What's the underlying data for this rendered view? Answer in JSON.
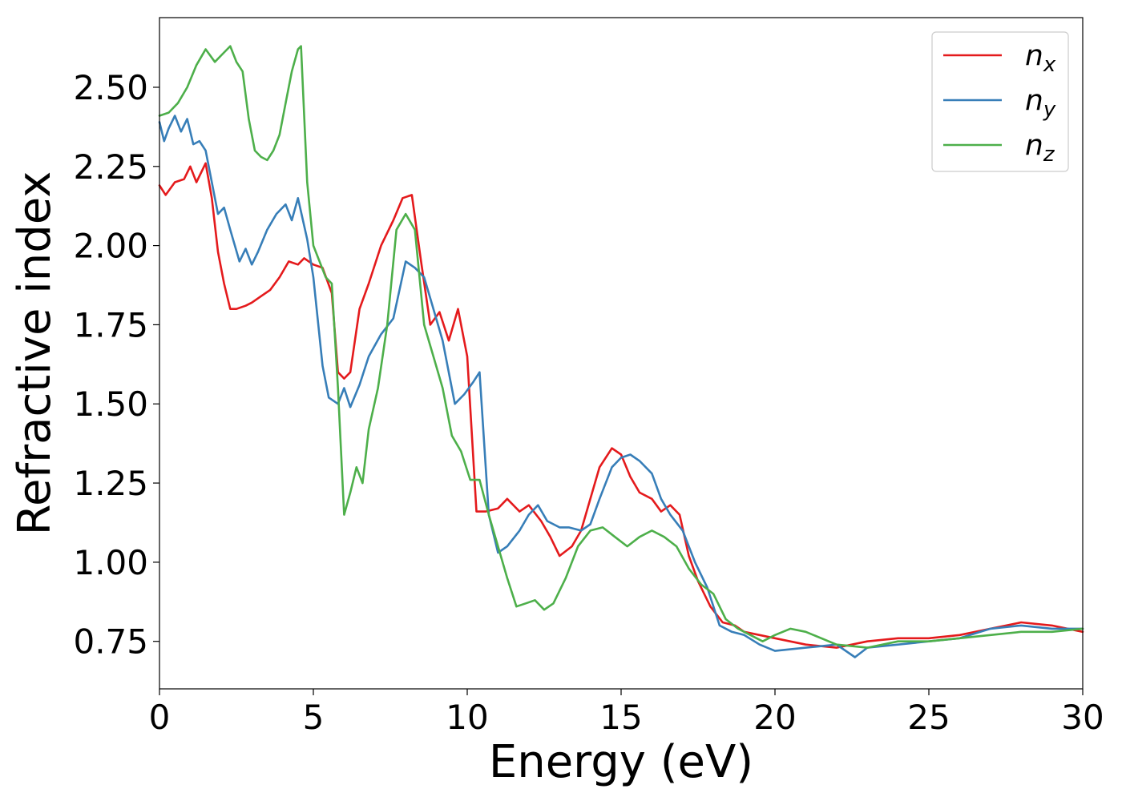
{
  "chart_data": {
    "type": "line",
    "xlabel": "Energy (eV)",
    "ylabel": "Refractive index",
    "xlim": [
      0,
      30
    ],
    "ylim": [
      0.6,
      2.72
    ],
    "xticks": [
      0,
      5,
      10,
      15,
      20,
      25,
      30
    ],
    "xtick_labels": [
      "0",
      "5",
      "10",
      "15",
      "20",
      "25",
      "30"
    ],
    "yticks": [
      0.75,
      1.0,
      1.25,
      1.5,
      1.75,
      2.0,
      2.25,
      2.5
    ],
    "ytick_labels": [
      "0.75",
      "1.00",
      "1.25",
      "1.50",
      "1.75",
      "2.00",
      "2.25",
      "2.50"
    ],
    "grid": false,
    "legend_position": "top-right",
    "series": [
      {
        "base": "n",
        "sub": "x",
        "color": "#e41a1c",
        "x": [
          0,
          0.2,
          0.5,
          0.8,
          1.0,
          1.2,
          1.5,
          1.7,
          1.9,
          2.1,
          2.3,
          2.5,
          2.8,
          3.0,
          3.3,
          3.6,
          3.9,
          4.2,
          4.5,
          4.7,
          5.0,
          5.3,
          5.6,
          5.8,
          6.0,
          6.2,
          6.5,
          6.8,
          7.2,
          7.6,
          7.9,
          8.2,
          8.5,
          8.8,
          9.1,
          9.4,
          9.7,
          10.0,
          10.3,
          10.6,
          11.0,
          11.3,
          11.7,
          12.0,
          12.4,
          12.7,
          13.0,
          13.4,
          13.7,
          14.0,
          14.3,
          14.7,
          15.0,
          15.3,
          15.6,
          16.0,
          16.3,
          16.6,
          16.9,
          17.2,
          17.5,
          17.9,
          18.3,
          18.7,
          19.0,
          19.5,
          20.0,
          21.0,
          22.0,
          23.0,
          24.0,
          25.0,
          26.0,
          27.0,
          28.0,
          29.0,
          30.0
        ],
        "y": [
          2.19,
          2.16,
          2.2,
          2.21,
          2.25,
          2.2,
          2.26,
          2.15,
          1.98,
          1.88,
          1.8,
          1.8,
          1.81,
          1.82,
          1.84,
          1.86,
          1.9,
          1.95,
          1.94,
          1.96,
          1.94,
          1.93,
          1.85,
          1.6,
          1.58,
          1.6,
          1.8,
          1.88,
          2.0,
          2.08,
          2.15,
          2.16,
          1.95,
          1.75,
          1.79,
          1.7,
          1.8,
          1.65,
          1.16,
          1.16,
          1.17,
          1.2,
          1.16,
          1.18,
          1.13,
          1.08,
          1.02,
          1.05,
          1.1,
          1.2,
          1.3,
          1.36,
          1.34,
          1.27,
          1.22,
          1.2,
          1.16,
          1.18,
          1.15,
          1.02,
          0.94,
          0.86,
          0.81,
          0.8,
          0.78,
          0.77,
          0.76,
          0.74,
          0.73,
          0.75,
          0.76,
          0.76,
          0.77,
          0.79,
          0.81,
          0.8,
          0.78
        ]
      },
      {
        "base": "n",
        "sub": "y",
        "color": "#377eb8",
        "x": [
          0,
          0.15,
          0.3,
          0.5,
          0.7,
          0.9,
          1.1,
          1.3,
          1.5,
          1.7,
          1.9,
          2.1,
          2.3,
          2.6,
          2.8,
          3.0,
          3.2,
          3.5,
          3.8,
          4.1,
          4.3,
          4.5,
          4.8,
          5.0,
          5.3,
          5.5,
          5.8,
          6.0,
          6.2,
          6.5,
          6.8,
          7.2,
          7.6,
          8.0,
          8.3,
          8.6,
          8.9,
          9.2,
          9.6,
          9.9,
          10.2,
          10.4,
          10.7,
          11.0,
          11.3,
          11.7,
          12.0,
          12.3,
          12.6,
          13.0,
          13.3,
          13.7,
          14.0,
          14.3,
          14.7,
          15.0,
          15.3,
          15.6,
          16.0,
          16.3,
          16.6,
          17.0,
          17.4,
          17.8,
          18.2,
          18.6,
          19.0,
          19.5,
          20.0,
          21.0,
          22.0,
          22.6,
          23.0,
          24.0,
          25.0,
          26.0,
          27.0,
          28.0,
          29.0,
          30.0
        ],
        "y": [
          2.39,
          2.33,
          2.37,
          2.41,
          2.36,
          2.4,
          2.32,
          2.33,
          2.3,
          2.2,
          2.1,
          2.12,
          2.05,
          1.95,
          1.99,
          1.94,
          1.98,
          2.05,
          2.1,
          2.13,
          2.08,
          2.15,
          2.02,
          1.9,
          1.62,
          1.52,
          1.5,
          1.55,
          1.49,
          1.56,
          1.65,
          1.72,
          1.77,
          1.95,
          1.93,
          1.9,
          1.8,
          1.7,
          1.5,
          1.53,
          1.57,
          1.6,
          1.15,
          1.03,
          1.05,
          1.1,
          1.15,
          1.18,
          1.13,
          1.11,
          1.11,
          1.1,
          1.12,
          1.2,
          1.3,
          1.33,
          1.34,
          1.32,
          1.28,
          1.2,
          1.15,
          1.1,
          1.0,
          0.92,
          0.8,
          0.78,
          0.77,
          0.74,
          0.72,
          0.73,
          0.74,
          0.7,
          0.73,
          0.74,
          0.75,
          0.76,
          0.79,
          0.8,
          0.79,
          0.79
        ]
      },
      {
        "base": "n",
        "sub": "z",
        "color": "#4daf4a",
        "x": [
          0,
          0.3,
          0.6,
          0.9,
          1.2,
          1.5,
          1.8,
          2.0,
          2.3,
          2.5,
          2.7,
          2.9,
          3.1,
          3.3,
          3.5,
          3.7,
          3.9,
          4.1,
          4.3,
          4.5,
          4.6,
          4.8,
          5.0,
          5.2,
          5.4,
          5.6,
          5.8,
          6.0,
          6.2,
          6.4,
          6.6,
          6.8,
          7.1,
          7.4,
          7.7,
          8.0,
          8.3,
          8.6,
          8.9,
          9.2,
          9.5,
          9.8,
          10.1,
          10.4,
          10.7,
          11.0,
          11.3,
          11.6,
          11.9,
          12.2,
          12.5,
          12.8,
          13.2,
          13.6,
          14.0,
          14.4,
          14.8,
          15.2,
          15.6,
          16.0,
          16.4,
          16.8,
          17.2,
          17.6,
          18.0,
          18.4,
          18.8,
          19.2,
          19.6,
          20.0,
          20.5,
          21.0,
          22.0,
          23.0,
          24.0,
          25.0,
          26.0,
          27.0,
          28.0,
          29.0,
          30.0
        ],
        "y": [
          2.41,
          2.42,
          2.45,
          2.5,
          2.57,
          2.62,
          2.58,
          2.6,
          2.63,
          2.58,
          2.55,
          2.4,
          2.3,
          2.28,
          2.27,
          2.3,
          2.35,
          2.45,
          2.55,
          2.62,
          2.63,
          2.2,
          2.0,
          1.95,
          1.9,
          1.88,
          1.55,
          1.15,
          1.22,
          1.3,
          1.25,
          1.42,
          1.55,
          1.75,
          2.05,
          2.1,
          2.05,
          1.75,
          1.65,
          1.55,
          1.4,
          1.35,
          1.26,
          1.26,
          1.15,
          1.05,
          0.95,
          0.86,
          0.87,
          0.88,
          0.85,
          0.87,
          0.95,
          1.05,
          1.1,
          1.11,
          1.08,
          1.05,
          1.08,
          1.1,
          1.08,
          1.05,
          0.98,
          0.93,
          0.9,
          0.82,
          0.79,
          0.77,
          0.75,
          0.77,
          0.79,
          0.78,
          0.74,
          0.73,
          0.75,
          0.75,
          0.76,
          0.77,
          0.78,
          0.78,
          0.79
        ]
      }
    ]
  }
}
